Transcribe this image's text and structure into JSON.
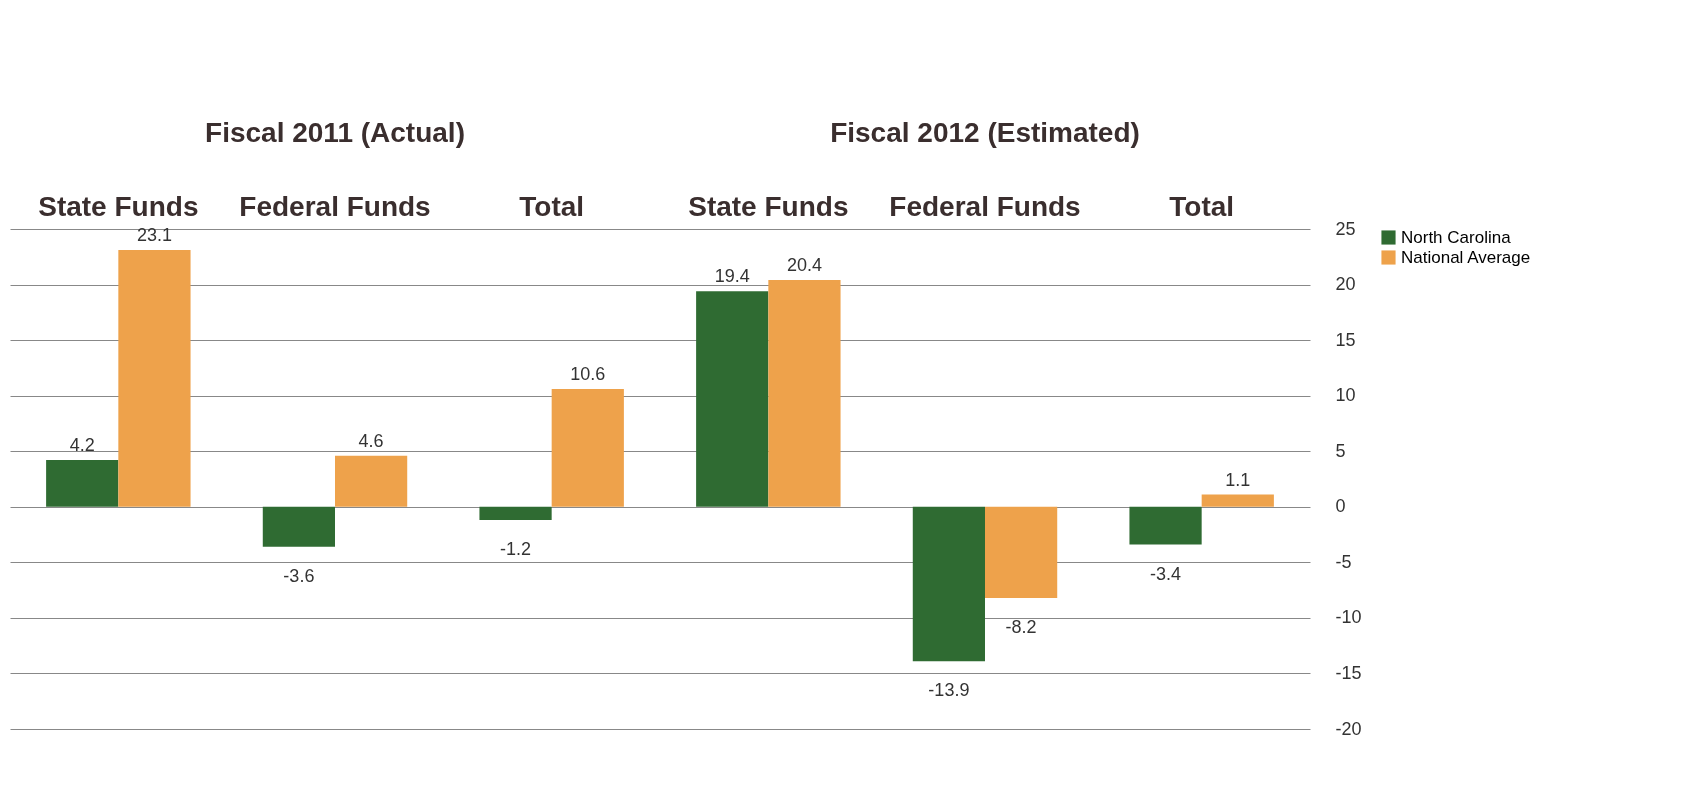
{
  "chart_data": {
    "type": "bar",
    "categories": [
      "State Funds",
      "Federal Funds",
      "Total",
      "State Funds",
      "Federal Funds",
      "Total"
    ],
    "series": [
      {
        "name": "North Carolina",
        "color": "#2f6b32",
        "values": [
          4.2,
          -3.6,
          -1.2,
          19.4,
          -13.9,
          -3.4
        ]
      },
      {
        "name": "National Average",
        "color": "#eea24b",
        "values": [
          23.1,
          4.6,
          10.6,
          20.4,
          -8.2,
          1.1
        ]
      }
    ],
    "annotations": [
      "Fiscal 2011 (Actual)",
      "Fiscal 2012 (Estimated)"
    ],
    "ylim": [
      -20,
      25
    ],
    "yticks": [
      -20,
      -15,
      -10,
      -5,
      0,
      5,
      10,
      15,
      20,
      25
    ],
    "grid": "y",
    "legend": "right",
    "data_labels": true
  }
}
